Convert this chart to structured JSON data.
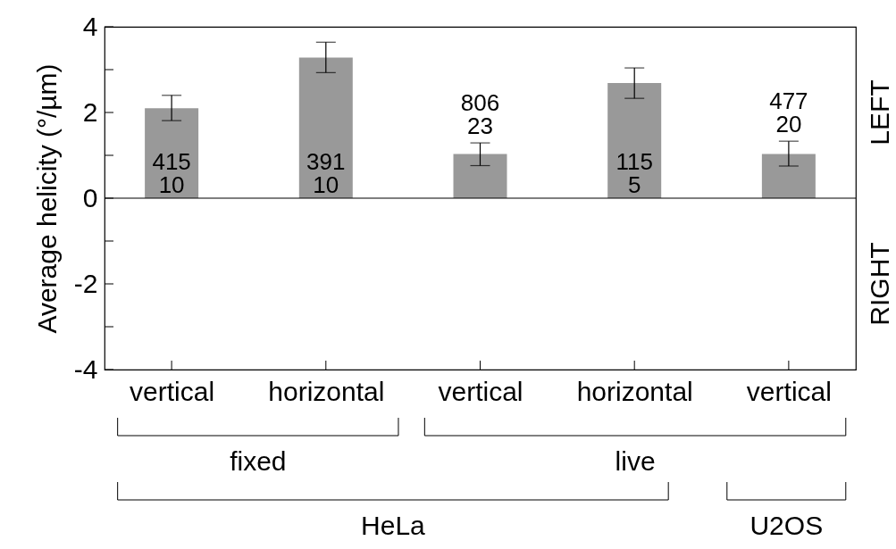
{
  "chart_data": {
    "type": "bar",
    "categories": [
      "vertical",
      "horizontal",
      "vertical",
      "horizontal",
      "vertical"
    ],
    "values": [
      2.1,
      3.28,
      1.03,
      2.69,
      1.03
    ],
    "errors": [
      [
        1.81,
        2.4
      ],
      [
        2.93,
        3.64
      ],
      [
        0.76,
        1.29
      ],
      [
        2.33,
        3.04
      ],
      [
        0.75,
        1.33
      ]
    ],
    "color": "#999999",
    "ylabel": "Average helicity (°/µm)",
    "ylim": [
      -4,
      4
    ],
    "yticks": [
      -4,
      {
        "value": -3,
        "label": null
      },
      -2,
      {
        "value": -1,
        "label": null
      },
      0,
      {
        "value": 1,
        "label": null
      },
      2,
      {
        "value": 3,
        "label": null
      },
      4
    ],
    "ref_lines": [
      {
        "axis": "y",
        "value": 0,
        "label": null
      }
    ],
    "grid": false,
    "annotations": [
      "415\n10",
      "391\n10",
      "806\n23",
      "115\n5",
      "477\n20",
      "LEFT",
      "RIGHT",
      "fixed",
      "live",
      "HeLa",
      "U2OS"
    ]
  }
}
